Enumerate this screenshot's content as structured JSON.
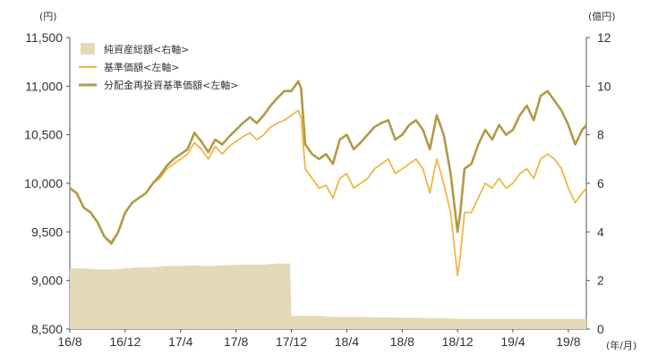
{
  "chart_data": {
    "type": "line",
    "left_axis_unit": "(円)",
    "right_axis_unit": "(億円)",
    "x_axis_unit": "(年/月)",
    "x_tick_labels": [
      "16/8",
      "16/12",
      "17/4",
      "17/8",
      "17/12",
      "18/4",
      "18/8",
      "18/12",
      "19/4",
      "19/8"
    ],
    "x_tick_months": [
      0,
      4,
      8,
      12,
      16,
      20,
      24,
      28,
      32,
      36
    ],
    "x_range_months": [
      0,
      37.3
    ],
    "left_ticks": [
      "11,500",
      "11,000",
      "10,500",
      "10,000",
      "9,500",
      "9,000",
      "8,500"
    ],
    "left_tick_values": [
      11500,
      11000,
      10500,
      10000,
      9500,
      9000,
      8500
    ],
    "left_ylim": [
      8500,
      11500
    ],
    "right_ticks": [
      "12",
      "10",
      "8",
      "6",
      "4",
      "2",
      "0"
    ],
    "right_tick_values": [
      12,
      10,
      8,
      6,
      4,
      2,
      0
    ],
    "right_ylim": [
      0,
      12
    ],
    "legend": [
      {
        "label": "純資産総額<右軸>",
        "kind": "area",
        "color": "#e3d9b8"
      },
      {
        "label": "基準価額<左軸>",
        "kind": "line",
        "color": "#f2b544"
      },
      {
        "label": "分配金再投資基準価額<左軸>",
        "kind": "line",
        "color": "#b09a45"
      }
    ],
    "series": [
      {
        "name": "純資産総額<右軸>",
        "axis": "right",
        "color": "#e3d9b8",
        "x": [
          0,
          1,
          2,
          3,
          4,
          5,
          6,
          7,
          8,
          9,
          10,
          11,
          12,
          13,
          14,
          15,
          15.9,
          16,
          17,
          18,
          19,
          20,
          21,
          22,
          23,
          24,
          25,
          26,
          27,
          28,
          29,
          30,
          31,
          32,
          33,
          34,
          35,
          36,
          37.3
        ],
        "values": [
          2.5,
          2.5,
          2.45,
          2.45,
          2.5,
          2.55,
          2.55,
          2.6,
          2.6,
          2.62,
          2.6,
          2.62,
          2.65,
          2.65,
          2.65,
          2.7,
          2.7,
          0.55,
          0.55,
          0.55,
          0.5,
          0.5,
          0.5,
          0.48,
          0.48,
          0.47,
          0.47,
          0.45,
          0.45,
          0.42,
          0.42,
          0.42,
          0.42,
          0.42,
          0.42,
          0.42,
          0.42,
          0.42,
          0.42
        ]
      },
      {
        "name": "基準価額<左軸>",
        "axis": "left",
        "color": "#f2b544",
        "x": [
          0,
          0.5,
          1,
          1.5,
          2,
          2.5,
          3,
          3.5,
          4,
          4.5,
          5,
          5.5,
          6,
          6.5,
          7,
          7.5,
          8,
          8.5,
          9,
          9.5,
          10,
          10.5,
          11,
          11.5,
          12,
          12.5,
          13,
          13.5,
          14,
          14.5,
          15,
          15.5,
          16,
          16.5,
          16.7,
          17,
          17.5,
          18,
          18.5,
          19,
          19.5,
          20,
          20.5,
          21,
          21.5,
          22,
          22.5,
          23,
          23.5,
          24,
          24.5,
          25,
          25.5,
          26,
          26.5,
          27,
          27.5,
          28,
          28.2,
          28.5,
          29,
          29.5,
          30,
          30.5,
          31,
          31.5,
          32,
          32.5,
          33,
          33.5,
          34,
          34.5,
          35,
          35.5,
          36,
          36.5,
          37,
          37.3
        ],
        "values": [
          9950,
          9900,
          9750,
          9700,
          9600,
          9450,
          9400,
          9500,
          9700,
          9800,
          9850,
          9900,
          10000,
          10050,
          10150,
          10200,
          10250,
          10300,
          10420,
          10350,
          10250,
          10380,
          10300,
          10380,
          10430,
          10480,
          10520,
          10450,
          10500,
          10580,
          10620,
          10650,
          10700,
          10750,
          10680,
          10150,
          10050,
          9950,
          9980,
          9850,
          10050,
          10100,
          9950,
          10000,
          10050,
          10150,
          10200,
          10250,
          10100,
          10150,
          10200,
          10250,
          10150,
          9900,
          10250,
          10000,
          9700,
          9050,
          9250,
          9700,
          9700,
          9850,
          10000,
          9950,
          10050,
          9950,
          10000,
          10100,
          10150,
          10050,
          10250,
          10300,
          10250,
          10150,
          9950,
          9800,
          9900,
          9950
        ]
      },
      {
        "name": "分配金再投資基準価額<左軸>",
        "axis": "left",
        "color": "#b09a45",
        "x": [
          0,
          0.5,
          1,
          1.5,
          2,
          2.5,
          3,
          3.5,
          4,
          4.5,
          5,
          5.5,
          6,
          6.5,
          7,
          7.5,
          8,
          8.5,
          9,
          9.5,
          10,
          10.5,
          11,
          11.5,
          12,
          12.5,
          13,
          13.5,
          14,
          14.5,
          15,
          15.5,
          16,
          16.5,
          16.7,
          17,
          17.5,
          18,
          18.5,
          19,
          19.5,
          20,
          20.5,
          21,
          21.5,
          22,
          22.5,
          23,
          23.5,
          24,
          24.5,
          25,
          25.5,
          26,
          26.5,
          27,
          27.5,
          28,
          28.2,
          28.5,
          29,
          29.5,
          30,
          30.5,
          31,
          31.5,
          32,
          32.5,
          33,
          33.5,
          34,
          34.5,
          35,
          35.5,
          36,
          36.5,
          37,
          37.3
        ],
        "values": [
          9950,
          9900,
          9750,
          9700,
          9600,
          9450,
          9380,
          9500,
          9700,
          9800,
          9850,
          9900,
          10000,
          10080,
          10180,
          10250,
          10300,
          10350,
          10520,
          10430,
          10320,
          10450,
          10400,
          10480,
          10550,
          10620,
          10680,
          10620,
          10700,
          10800,
          10880,
          10950,
          10950,
          11050,
          10980,
          10400,
          10300,
          10250,
          10300,
          10200,
          10450,
          10500,
          10350,
          10420,
          10500,
          10580,
          10620,
          10650,
          10450,
          10500,
          10600,
          10650,
          10550,
          10350,
          10700,
          10500,
          10100,
          9500,
          9700,
          10150,
          10200,
          10400,
          10550,
          10450,
          10600,
          10500,
          10550,
          10700,
          10800,
          10650,
          10900,
          10950,
          10850,
          10750,
          10600,
          10400,
          10550,
          10600
        ]
      }
    ]
  }
}
